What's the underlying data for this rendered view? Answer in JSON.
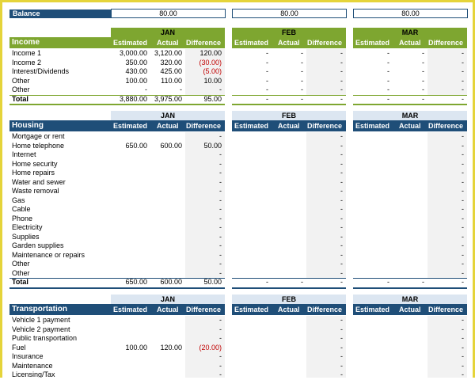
{
  "balance": {
    "label": "Balance",
    "values": [
      "80.00",
      "80.00",
      "80.00"
    ]
  },
  "months": [
    "JAN",
    "FEB",
    "MAR"
  ],
  "col_headers": {
    "estimated": "Estimated",
    "actual": "Actual",
    "difference": "Difference"
  },
  "dash": "-",
  "colors": {
    "green": "#7ea630",
    "blue": "#1f4e78",
    "light_blue": "#dce6f1",
    "light_green": "#c6e0a0",
    "border": "#e5d43a",
    "negative": "#c00000"
  },
  "income": {
    "title": "Income",
    "rows": [
      {
        "label": "Income 1",
        "est": "3,000.00",
        "act": "3,120.00",
        "diff": "120.00",
        "neg": false
      },
      {
        "label": "Income 2",
        "est": "350.00",
        "act": "320.00",
        "diff": "(30.00)",
        "neg": true
      },
      {
        "label": "Interest/Dividends",
        "est": "430.00",
        "act": "425.00",
        "diff": "(5.00)",
        "neg": true
      },
      {
        "label": "Other",
        "est": "100.00",
        "act": "110.00",
        "diff": "10.00",
        "neg": false
      },
      {
        "label": "Other",
        "est": "-",
        "act": "-",
        "diff": "-",
        "neg": false
      }
    ],
    "total": {
      "label": "Total",
      "est": "3,880.00",
      "act": "3,975.00",
      "diff": "95.00"
    }
  },
  "housing": {
    "title": "Housing",
    "rows": [
      {
        "label": "Mortgage or rent",
        "est": "",
        "act": "",
        "diff": "-",
        "neg": false
      },
      {
        "label": "Home telephone",
        "est": "650.00",
        "act": "600.00",
        "diff": "50.00",
        "neg": false
      },
      {
        "label": "Internet",
        "est": "",
        "act": "",
        "diff": "-",
        "neg": false
      },
      {
        "label": "Home security",
        "est": "",
        "act": "",
        "diff": "-",
        "neg": false
      },
      {
        "label": "Home repairs",
        "est": "",
        "act": "",
        "diff": "-",
        "neg": false
      },
      {
        "label": "Water and sewer",
        "est": "",
        "act": "",
        "diff": "-",
        "neg": false
      },
      {
        "label": "Waste removal",
        "est": "",
        "act": "",
        "diff": "-",
        "neg": false
      },
      {
        "label": "Gas",
        "est": "",
        "act": "",
        "diff": "-",
        "neg": false
      },
      {
        "label": "Cable",
        "est": "",
        "act": "",
        "diff": "-",
        "neg": false
      },
      {
        "label": "Phone",
        "est": "",
        "act": "",
        "diff": "-",
        "neg": false
      },
      {
        "label": "Electricity",
        "est": "",
        "act": "",
        "diff": "-",
        "neg": false
      },
      {
        "label": "Supplies",
        "est": "",
        "act": "",
        "diff": "-",
        "neg": false
      },
      {
        "label": "Garden supplies",
        "est": "",
        "act": "",
        "diff": "-",
        "neg": false
      },
      {
        "label": "Maintenance or repairs",
        "est": "",
        "act": "",
        "diff": "-",
        "neg": false
      },
      {
        "label": "Other",
        "est": "",
        "act": "",
        "diff": "-",
        "neg": false
      },
      {
        "label": "Other",
        "est": "",
        "act": "",
        "diff": "-",
        "neg": false
      }
    ],
    "total": {
      "label": "Total",
      "est": "650.00",
      "act": "600.00",
      "diff": "50.00"
    }
  },
  "transportation": {
    "title": "Transportation",
    "rows": [
      {
        "label": "Vehicle 1 payment",
        "est": "",
        "act": "",
        "diff": "-",
        "neg": false
      },
      {
        "label": "Vehicle 2 payment",
        "est": "",
        "act": "",
        "diff": "-",
        "neg": false
      },
      {
        "label": "Public transportation",
        "est": "",
        "act": "",
        "diff": "-",
        "neg": false
      },
      {
        "label": "Fuel",
        "est": "100.00",
        "act": "120.00",
        "diff": "(20.00)",
        "neg": true
      },
      {
        "label": "Insurance",
        "est": "",
        "act": "",
        "diff": "-",
        "neg": false
      },
      {
        "label": "Maintenance",
        "est": "",
        "act": "",
        "diff": "-",
        "neg": false
      },
      {
        "label": "Licensing/Tax",
        "est": "",
        "act": "",
        "diff": "-",
        "neg": false
      }
    ]
  }
}
